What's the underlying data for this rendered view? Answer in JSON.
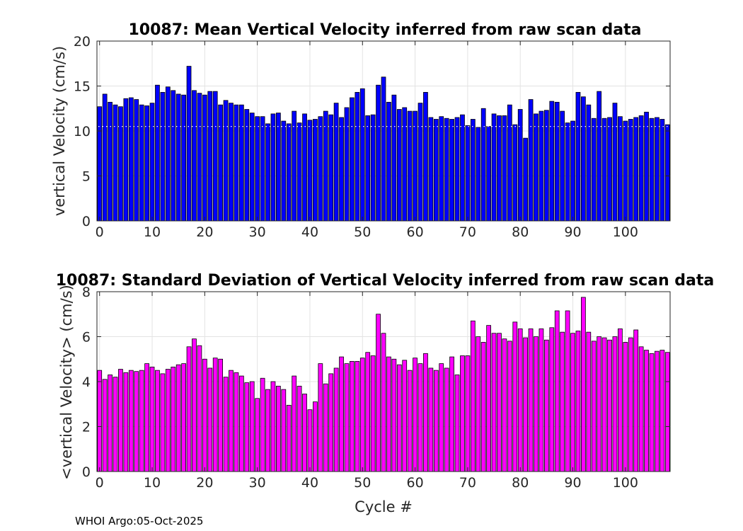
{
  "chart_data": [
    {
      "type": "bar",
      "title": "10087: Mean Vertical Velocity inferred from raw scan data",
      "xlabel": "",
      "ylabel": "vertical Velocity (cm/s)",
      "xlim": [
        -0.5,
        108.5
      ],
      "ylim": [
        0,
        20
      ],
      "xticks": [
        0,
        10,
        20,
        30,
        40,
        50,
        60,
        70,
        80,
        90,
        100
      ],
      "yticks": [
        0,
        5,
        10,
        15,
        20
      ],
      "grid": true,
      "bar_color": "#0000ff",
      "dotted_reference_line": 10.5,
      "x": [
        0,
        1,
        2,
        3,
        4,
        5,
        6,
        7,
        8,
        9,
        10,
        11,
        12,
        13,
        14,
        15,
        16,
        17,
        18,
        19,
        20,
        21,
        22,
        23,
        24,
        25,
        26,
        27,
        28,
        29,
        30,
        31,
        32,
        33,
        34,
        35,
        36,
        37,
        38,
        39,
        40,
        41,
        42,
        43,
        44,
        45,
        46,
        47,
        48,
        49,
        50,
        51,
        52,
        53,
        54,
        55,
        56,
        57,
        58,
        59,
        60,
        61,
        62,
        63,
        64,
        65,
        66,
        67,
        68,
        69,
        70,
        71,
        72,
        73,
        74,
        75,
        76,
        77,
        78,
        79,
        80,
        81,
        82,
        83,
        84,
        85,
        86,
        87,
        88,
        89,
        90,
        91,
        92,
        93,
        94,
        95,
        96,
        97,
        98,
        99,
        100,
        101,
        102,
        103,
        104,
        105,
        106,
        107,
        108
      ],
      "values": [
        12.7,
        14.1,
        13.2,
        12.9,
        12.7,
        13.6,
        13.7,
        13.5,
        12.9,
        12.8,
        13.1,
        15.1,
        14.3,
        14.9,
        14.5,
        14.1,
        14.0,
        17.2,
        14.5,
        14.2,
        14.0,
        14.4,
        14.4,
        12.9,
        13.4,
        13.1,
        12.9,
        12.9,
        12.4,
        12.0,
        11.6,
        11.6,
        10.8,
        11.9,
        12.0,
        11.1,
        10.8,
        12.2,
        10.9,
        11.9,
        11.2,
        11.3,
        11.6,
        12.2,
        11.8,
        13.1,
        11.5,
        12.6,
        13.7,
        14.3,
        14.7,
        11.7,
        11.8,
        15.1,
        16.0,
        13.2,
        14.0,
        12.4,
        12.6,
        12.2,
        12.2,
        13.1,
        14.3,
        11.5,
        11.3,
        11.6,
        11.4,
        11.3,
        11.5,
        11.8,
        10.6,
        11.3,
        10.4,
        12.5,
        10.5,
        11.9,
        11.7,
        11.7,
        12.9,
        10.7,
        12.4,
        9.2,
        13.5,
        11.9,
        12.2,
        12.3,
        13.3,
        13.2,
        12.2,
        10.9,
        11.1,
        14.3,
        13.8,
        12.9,
        11.4,
        14.4,
        11.4,
        11.5,
        13.1,
        11.6,
        11.1,
        11.3,
        11.5,
        11.7,
        12.1,
        11.4,
        11.5,
        11.3,
        10.7
      ]
    },
    {
      "type": "bar",
      "title": "10087: Standard Deviation of Vertical Velocity inferred from raw scan data",
      "xlabel": "Cycle #",
      "ylabel": "<vertical Velocity> (cm/s)",
      "xlim": [
        -0.5,
        108.5
      ],
      "ylim": [
        0,
        8
      ],
      "xticks": [
        0,
        10,
        20,
        30,
        40,
        50,
        60,
        70,
        80,
        90,
        100
      ],
      "yticks": [
        0,
        2,
        4,
        6,
        8
      ],
      "grid": true,
      "bar_color": "#ff00ff",
      "x": [
        0,
        1,
        2,
        3,
        4,
        5,
        6,
        7,
        8,
        9,
        10,
        11,
        12,
        13,
        14,
        15,
        16,
        17,
        18,
        19,
        20,
        21,
        22,
        23,
        24,
        25,
        26,
        27,
        28,
        29,
        30,
        31,
        32,
        33,
        34,
        35,
        36,
        37,
        38,
        39,
        40,
        41,
        42,
        43,
        44,
        45,
        46,
        47,
        48,
        49,
        50,
        51,
        52,
        53,
        54,
        55,
        56,
        57,
        58,
        59,
        60,
        61,
        62,
        63,
        64,
        65,
        66,
        67,
        68,
        69,
        70,
        71,
        72,
        73,
        74,
        75,
        76,
        77,
        78,
        79,
        80,
        81,
        82,
        83,
        84,
        85,
        86,
        87,
        88,
        89,
        90,
        91,
        92,
        93,
        94,
        95,
        96,
        97,
        98,
        99,
        100,
        101,
        102,
        103,
        104,
        105,
        106,
        107,
        108
      ],
      "values": [
        4.5,
        4.1,
        4.3,
        4.2,
        4.55,
        4.4,
        4.5,
        4.45,
        4.5,
        4.8,
        4.65,
        4.5,
        4.35,
        4.55,
        4.65,
        4.75,
        4.8,
        5.55,
        5.9,
        5.6,
        5.0,
        4.6,
        5.05,
        5.0,
        4.2,
        4.5,
        4.4,
        4.25,
        3.95,
        4.0,
        3.25,
        4.15,
        3.65,
        4.0,
        3.8,
        3.65,
        2.95,
        4.25,
        3.8,
        3.45,
        2.75,
        3.1,
        4.8,
        3.9,
        4.35,
        4.6,
        5.1,
        4.8,
        4.9,
        4.9,
        5.05,
        5.3,
        5.15,
        7.0,
        6.15,
        5.1,
        5.0,
        4.75,
        4.95,
        4.5,
        5.05,
        4.8,
        5.25,
        4.6,
        4.5,
        4.8,
        4.6,
        5.1,
        4.3,
        5.15,
        5.15,
        6.7,
        6.0,
        5.75,
        6.5,
        6.15,
        6.15,
        5.9,
        5.8,
        6.65,
        6.35,
        5.95,
        6.35,
        6.0,
        6.35,
        5.85,
        6.4,
        7.15,
        6.2,
        7.15,
        6.15,
        6.25,
        7.75,
        6.2,
        5.8,
        6.0,
        5.95,
        5.85,
        6.0,
        6.35,
        5.75,
        5.95,
        6.3,
        5.55,
        5.4,
        5.25,
        5.35,
        5.4,
        5.3
      ]
    }
  ],
  "footer": "WHOI Argo:05-Oct-2025"
}
